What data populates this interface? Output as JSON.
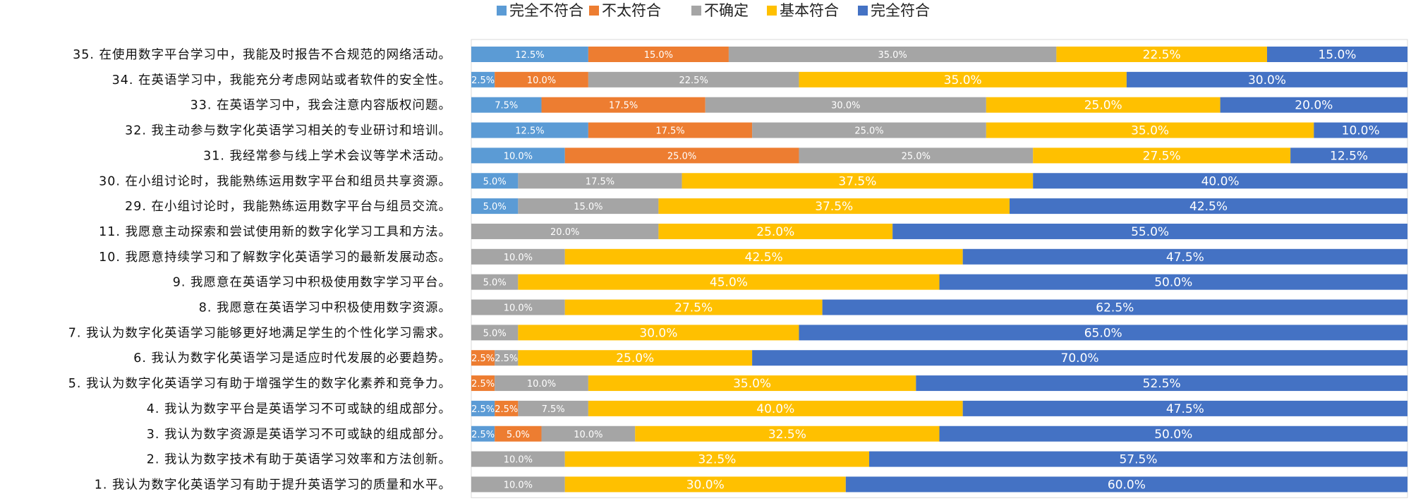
{
  "chart_data": {
    "type": "bar",
    "orientation": "horizontal",
    "stacked": true,
    "percent_stacked": true,
    "legend_position": "top",
    "grid": false,
    "xlim": [
      0,
      100
    ],
    "title": "",
    "xlabel": "",
    "ylabel": "",
    "categories": [
      "35. 在使用数字平台学习中，我能及时报告不合规范的网络活动。",
      "34. 在英语学习中，我能充分考虑网站或者软件的安全性。",
      "33. 在英语学习中，我会注意内容版权问题。",
      "32. 我主动参与数字化英语学习相关的专业研讨和培训。",
      "31. 我经常参与线上学术会议等学术活动。",
      "30. 在小组讨论时，我能熟练运用数字平台和组员共享资源。",
      "29. 在小组讨论时，我能熟练运用数字平台与组员交流。",
      "11. 我愿意主动探索和尝试使用新的数字化学习工具和方法。",
      "10. 我愿意持续学习和了解数字化英语学习的最新发展动态。",
      "9. 我愿意在英语学习中积极使用数字学习平台。",
      "8. 我愿意在英语学习中积极使用数字资源。",
      "7. 我认为数字化英语学习能够更好地满足学生的个性化学习需求。",
      "6. 我认为数字化英语学习是适应时代发展的必要趋势。",
      "5. 我认为数字化英语学习有助于增强学生的数字化素养和竞争力。",
      "4. 我认为数字平台是英语学习不可或缺的组成部分。",
      "3. 我认为数字资源是英语学习不可或缺的组成部分。",
      "2. 我认为数字技术有助于英语学习效率和方法创新。",
      "1. 我认为数字化英语学习有助于提升英语学习的质量和水平。"
    ],
    "series": [
      {
        "name": "完全不符合",
        "color": "#5B9BD5",
        "values": [
          12.5,
          2.5,
          7.5,
          12.5,
          10.0,
          5.0,
          5.0,
          0,
          0,
          0,
          0,
          0,
          0,
          0,
          2.5,
          2.5,
          0,
          0
        ]
      },
      {
        "name": "不太符合",
        "color": "#ED7D31",
        "values": [
          15.0,
          10.0,
          17.5,
          17.5,
          25.0,
          0,
          0,
          0,
          0,
          0,
          0,
          0,
          2.5,
          2.5,
          2.5,
          5.0,
          0,
          0
        ]
      },
      {
        "name": "不确定",
        "color": "#A5A5A5",
        "values": [
          35.0,
          22.5,
          30.0,
          25.0,
          25.0,
          17.5,
          15.0,
          20.0,
          10.0,
          5.0,
          10.0,
          5.0,
          2.5,
          10.0,
          7.5,
          10.0,
          10.0,
          10.0
        ]
      },
      {
        "name": "基本符合",
        "color": "#FFC000",
        "values": [
          22.5,
          35.0,
          25.0,
          35.0,
          27.5,
          37.5,
          37.5,
          25.0,
          42.5,
          45.0,
          27.5,
          30.0,
          25.0,
          35.0,
          40.0,
          32.5,
          32.5,
          30.0
        ]
      },
      {
        "name": "完全符合",
        "color": "#4472C4",
        "values": [
          15.0,
          30.0,
          20.0,
          10.0,
          12.5,
          40.0,
          42.5,
          55.0,
          47.5,
          50.0,
          62.5,
          65.0,
          70.0,
          52.5,
          47.5,
          50.0,
          57.5,
          60.0
        ]
      }
    ]
  }
}
